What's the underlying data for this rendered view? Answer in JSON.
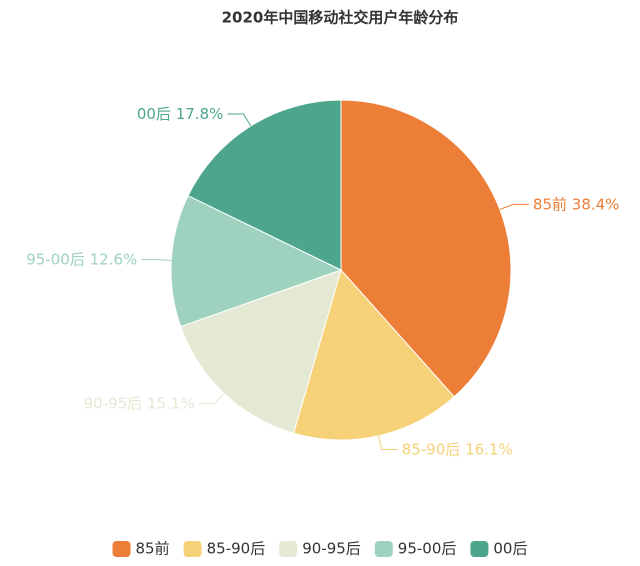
{
  "chart_data": {
    "type": "pie",
    "title": "2020年中国移动社交用户年龄分布",
    "categories": [
      "85前",
      "85-90后",
      "90-95后",
      "95-00后",
      "00后"
    ],
    "values": [
      38.4,
      16.1,
      15.1,
      12.6,
      17.8
    ],
    "value_labels": [
      "38.4%",
      "16.1%",
      "15.1%",
      "12.6%",
      "17.8%"
    ],
    "colors": [
      "#ec7e37",
      "#f6d177",
      "#e3e9d3",
      "#9ed2bf",
      "#4ea58e"
    ],
    "legend": "bottom"
  }
}
